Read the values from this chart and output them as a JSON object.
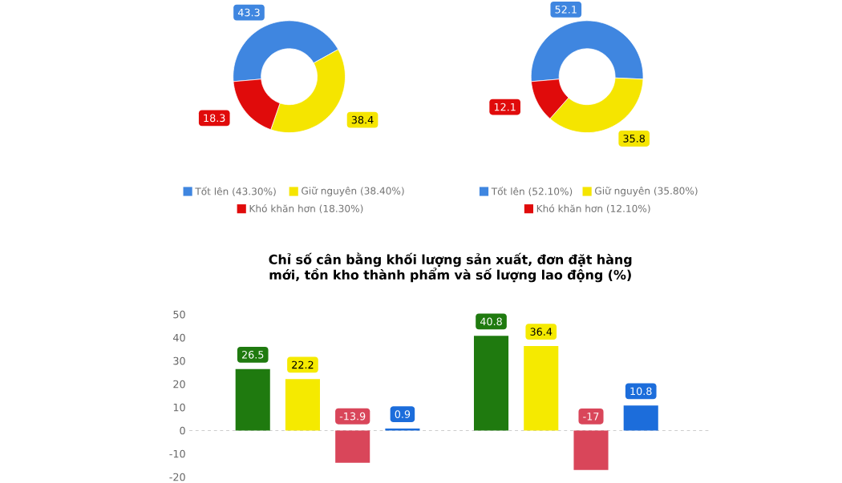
{
  "chart_data": [
    {
      "type": "donut",
      "categories": [
        "Tốt lên (43.30%)",
        "Giữ nguyên (38.40%)",
        "Khó khăn hơn (18.30%)"
      ],
      "values": [
        43.3,
        38.4,
        18.3
      ],
      "colors": [
        "#3f86e0",
        "#f5e500",
        "#e00b0b"
      ],
      "data_labels": true,
      "legend": "bottom"
    },
    {
      "type": "donut",
      "categories": [
        "Tốt lên (52.10%)",
        "Giữ nguyên (35.80%)",
        "Khó khăn hơn (12.10%)"
      ],
      "values": [
        52.1,
        35.8,
        12.1
      ],
      "colors": [
        "#3f86e0",
        "#f5e500",
        "#e00b0b"
      ],
      "data_labels": true,
      "legend": "bottom"
    },
    {
      "type": "bar",
      "title": "Chỉ số cân bằng khối lượng sản xuất, đơn đặt hàng mới, tồn kho thành phẩm và số lượng lao động (%)",
      "categories": [
        null,
        null
      ],
      "series": [
        {
          "color": "#1f7a0f",
          "values": [
            26.5,
            40.8
          ]
        },
        {
          "color": "#f5ea00",
          "values": [
            22.2,
            36.4
          ]
        },
        {
          "color": "#d9465a",
          "values": [
            -13.9,
            -17
          ]
        },
        {
          "color": "#1c6ddb",
          "values": [
            0.9,
            10.8
          ]
        }
      ],
      "ylim": [
        -20,
        50
      ],
      "yticks": [
        -20,
        -10,
        0,
        10,
        20,
        30,
        40,
        50
      ],
      "data_labels": true,
      "ref_lines": [
        {
          "axis": "y",
          "value": 0,
          "color": "#bbbbbb",
          "line_style": "dashed"
        }
      ]
    }
  ]
}
